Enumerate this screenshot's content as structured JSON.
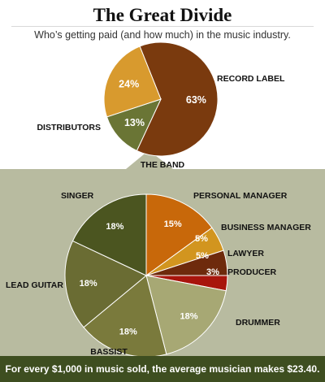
{
  "header": {
    "title": "The Great Divide",
    "subtitle": "Who’s getting paid (and how much) in the music industry."
  },
  "footer": {
    "text": "For every $1,000 in music sold, the average musician makes $23.40."
  },
  "colors": {
    "panel_background": "#b8bba0",
    "footer_background": "#3e4e20"
  },
  "chart_data": [
    {
      "type": "pie",
      "slices": [
        {
          "label": "RECORD LABEL",
          "value": 63,
          "value_label": "63%",
          "color": "#7a3a0e"
        },
        {
          "label": "THE BAND",
          "value": 13,
          "value_label": "13%",
          "color": "#6a7535"
        },
        {
          "label": "DISTRIBUTORS",
          "value": 24,
          "value_label": "24%",
          "color": "#d89a2e"
        }
      ]
    },
    {
      "type": "pie",
      "slices": [
        {
          "label": "PERSONAL MANAGER",
          "value": 15,
          "value_label": "15%",
          "color": "#c8680a"
        },
        {
          "label": "BUSINESS MANAGER",
          "value": 5,
          "value_label": "5%",
          "color": "#d2951f"
        },
        {
          "label": "LAWYER",
          "value": 5,
          "value_label": "5%",
          "color": "#6e2a0c"
        },
        {
          "label": "PRODUCER",
          "value": 3,
          "value_label": "3%",
          "color": "#a8150c"
        },
        {
          "label": "DRUMMER",
          "value": 18,
          "value_label": "18%",
          "color": "#a7a874"
        },
        {
          "label": "BASSIST",
          "value": 18,
          "value_label": "18%",
          "color": "#7a7a3c"
        },
        {
          "label": "LEAD GUITAR",
          "value": 18,
          "value_label": "18%",
          "color": "#6a6c33"
        },
        {
          "label": "SINGER",
          "value": 18,
          "value_label": "18%",
          "color": "#4b5520"
        }
      ]
    }
  ]
}
